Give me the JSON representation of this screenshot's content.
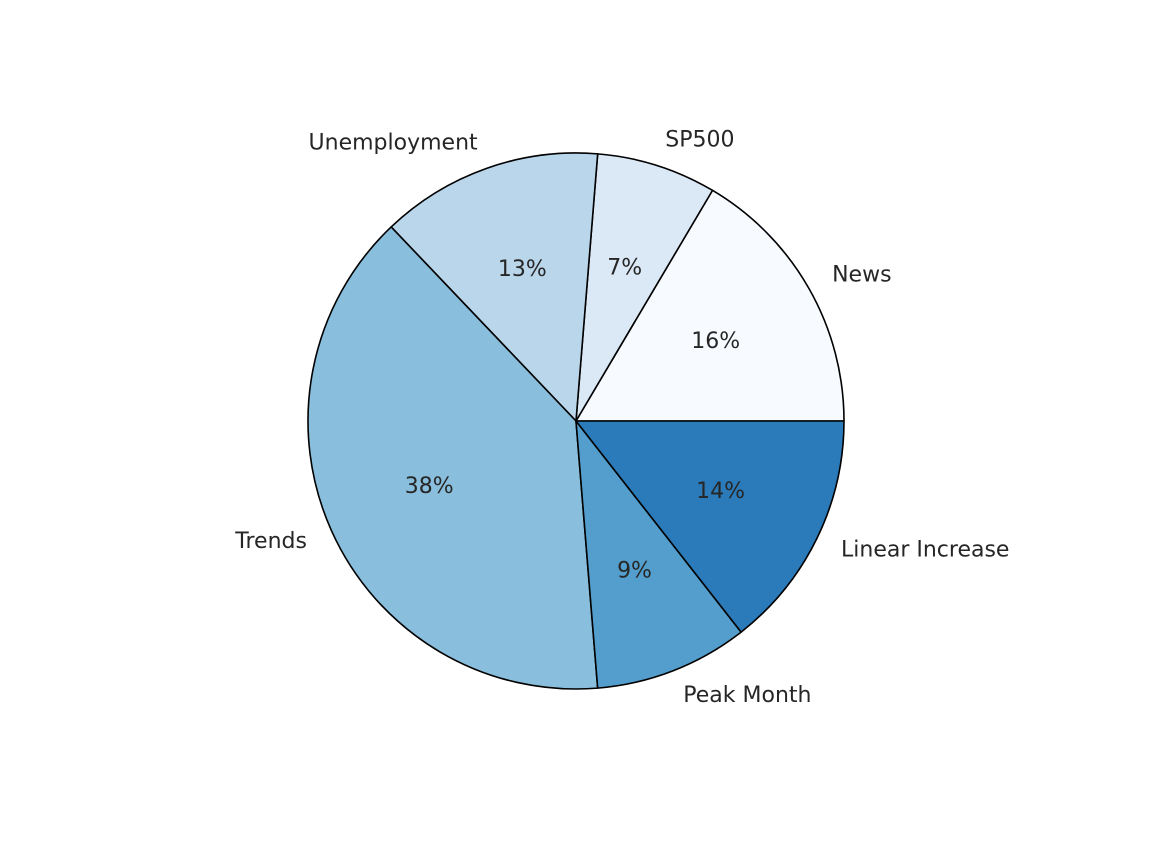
{
  "chart_data": {
    "type": "pie",
    "title": "",
    "slices": [
      {
        "label": "News",
        "value": 16,
        "pct_text": "16%",
        "color": "#f7fbff"
      },
      {
        "label": "SP500",
        "value": 7,
        "pct_text": "7%",
        "color": "#dbe9f6"
      },
      {
        "label": "Unemployment",
        "value": 13,
        "pct_text": "13%",
        "color": "#bad6eb"
      },
      {
        "label": "Trends",
        "value": 38,
        "pct_text": "38%",
        "color": "#89bedc"
      },
      {
        "label": "Peak Month",
        "value": 9,
        "pct_text": "9%",
        "color": "#539ecd"
      },
      {
        "label": "Linear Increase",
        "value": 14,
        "pct_text": "14%",
        "color": "#2b7bba"
      }
    ],
    "start_angle_deg": 0,
    "direction": "counterclockwise",
    "edge_color": "#000000",
    "legend": "none"
  }
}
